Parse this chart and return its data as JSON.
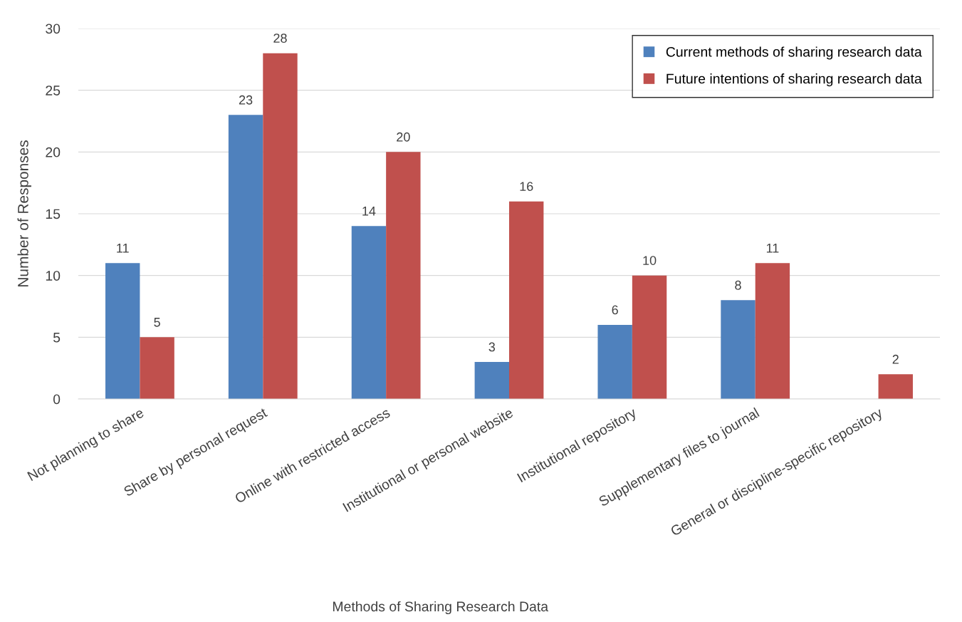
{
  "chart_data": {
    "type": "bar",
    "xlabel": "Methods of Sharing Research Data",
    "ylabel": "Number of Responses",
    "categories": [
      "Not planning to share",
      "Share by personal request",
      "Online with restricted access",
      "Institutional or personal website",
      "Institutional repository",
      "Supplementary files to journal",
      "General or discipline-specific repository"
    ],
    "series": [
      {
        "name": "Current methods of sharing research data",
        "color": "#4f81bd",
        "values": [
          11,
          23,
          14,
          3,
          6,
          8,
          null
        ]
      },
      {
        "name": "Future intentions of sharing research data",
        "color": "#c0504d",
        "values": [
          5,
          28,
          20,
          16,
          10,
          11,
          2
        ]
      }
    ],
    "ylim": [
      0,
      30
    ],
    "yticks": [
      0,
      5,
      10,
      15,
      20,
      25,
      30
    ],
    "grid": "y",
    "legend": "top right",
    "data_labels": true
  }
}
